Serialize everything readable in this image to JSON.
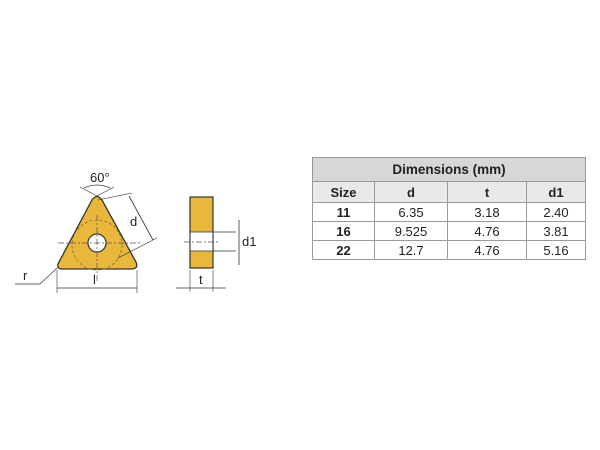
{
  "diagram": {
    "angle_label": "60°",
    "d_label": "d",
    "r_label": "r",
    "l_label": "l",
    "d1_label": "d1",
    "t_label": "t",
    "insert_color": "#e8b73c"
  },
  "table": {
    "title": "Dimensions (mm)",
    "headers": [
      "Size",
      "d",
      "t",
      "d1"
    ],
    "rows": [
      {
        "size": "11",
        "d": "6.35",
        "t": "3.18",
        "d1": "2.40"
      },
      {
        "size": "16",
        "d": "9.525",
        "t": "4.76",
        "d1": "3.81"
      },
      {
        "size": "22",
        "d": "12.7",
        "t": "4.76",
        "d1": "5.16"
      }
    ]
  }
}
